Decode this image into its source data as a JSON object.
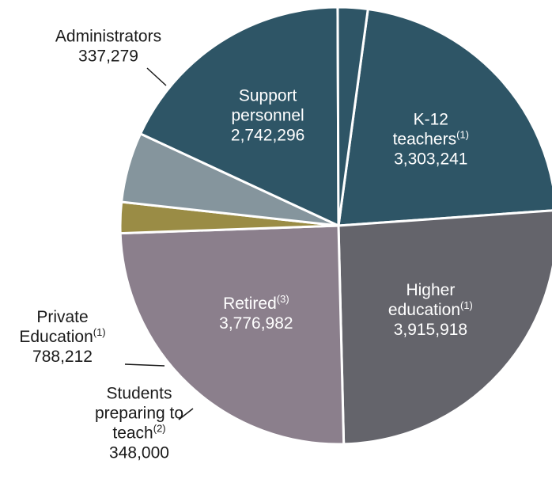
{
  "chart_data": {
    "type": "pie",
    "title": "",
    "slices": [
      {
        "label": [
          "K-12",
          "teachers"
        ],
        "sup": "(1)",
        "value_text": "3,303,241",
        "value": 3303241,
        "color": "#2e5566"
      },
      {
        "label": [
          "Higher",
          "education"
        ],
        "sup": "(1)",
        "value_text": "3,915,918",
        "value": 3915918,
        "color": "#64646b"
      },
      {
        "label": [
          "Retired"
        ],
        "sup": "(3)",
        "value_text": "3,776,982",
        "value": 3776982,
        "color": "#8b7f8c"
      },
      {
        "label": [
          "Students",
          "preparing to",
          "teach"
        ],
        "sup": "(2)",
        "value_text": "348,000",
        "value": 348000,
        "color": "#9a8c45"
      },
      {
        "label": [
          "Private",
          "Education"
        ],
        "sup": "(1)",
        "value_text": "788,212",
        "value": 788212,
        "color": "#85959d"
      },
      {
        "label": [
          "Support",
          "personnel"
        ],
        "sup": "",
        "value_text": "2,742,296",
        "value": 2742296,
        "color": "#2e5566"
      },
      {
        "label": [
          "Administrators"
        ],
        "sup": "",
        "value_text": "337,279",
        "value": 337279,
        "color": "#2e5566"
      }
    ]
  }
}
